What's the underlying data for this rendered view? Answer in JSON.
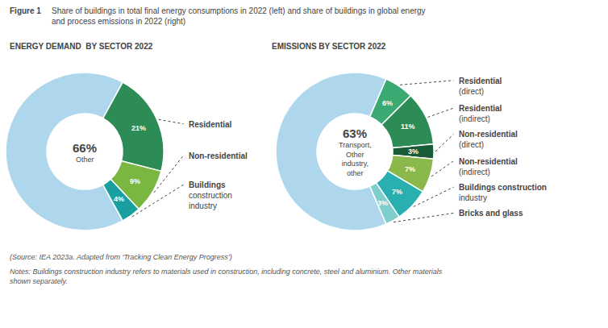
{
  "title": "Figure 1",
  "subtitle": "Share of buildings in total final energy consumptions in 2022 (left) and share of buildings in global energy\nand process emissions in 2022 (right)",
  "annotations": [
    "(Source: IEA 2023a. Adapted from ‘Tracking Clean Energy Progress’)",
    "Notes: Buildings construction industry refers to materials used in construction, including concrete, steel and aluminium. Other materials\nshown separately."
  ],
  "chart_data": [
    {
      "type": "pie",
      "title": "ENERGY DEMAND  BY SECTOR 2022",
      "categories": [
        "Other",
        "Residential",
        "Non-residential",
        "Buildings\nconstruction\nindustry"
      ],
      "values": [
        66,
        21,
        9,
        4
      ],
      "value_labels": [
        "66%",
        "21%",
        "9%",
        "4%"
      ],
      "colors": [
        "#aed6ec",
        "#2d8c55",
        "#7ab740",
        "#1a9fa0"
      ],
      "data_labels": true
    },
    {
      "type": "pie",
      "title": "EMISSIONS BY SECTOR 2022",
      "categories": [
        "Transport,\nOther\nindustry,\nother",
        "Residential\n(direct)",
        "Residential\n(indirect)",
        "Non-residential\n(direct)",
        "Non-residential\n(indirect)",
        "Buildings construction\nindustry",
        "Bricks and glass"
      ],
      "values": [
        63,
        6,
        11,
        3,
        7,
        7,
        3
      ],
      "value_labels": [
        "63%",
        "6%",
        "11%",
        "3%",
        "7%",
        "7%",
        "3%"
      ],
      "colors": [
        "#aed6ec",
        "#3aaa72",
        "#2d8c55",
        "#1a5c38",
        "#8ab84b",
        "#2aafb0",
        "#7ecece"
      ],
      "data_labels": true
    }
  ]
}
